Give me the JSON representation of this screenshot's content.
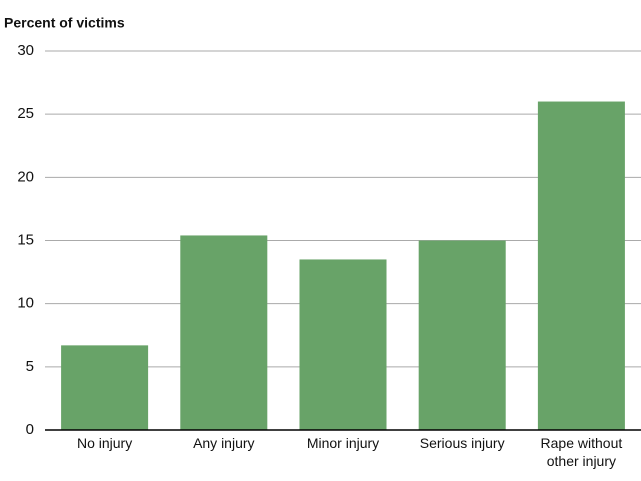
{
  "chart_data": {
    "type": "bar",
    "y_label": "Percent of victims",
    "categories": [
      "No injury",
      "Any injury",
      "Minor injury",
      "Serious injury",
      "Rape without other injury"
    ],
    "values": [
      6.7,
      15.4,
      13.5,
      15.0,
      26.0
    ],
    "color": "#68a368",
    "ylim": [
      0,
      30
    ],
    "yticks": [
      0,
      5,
      10,
      15,
      20,
      25,
      30
    ],
    "grid": true
  }
}
